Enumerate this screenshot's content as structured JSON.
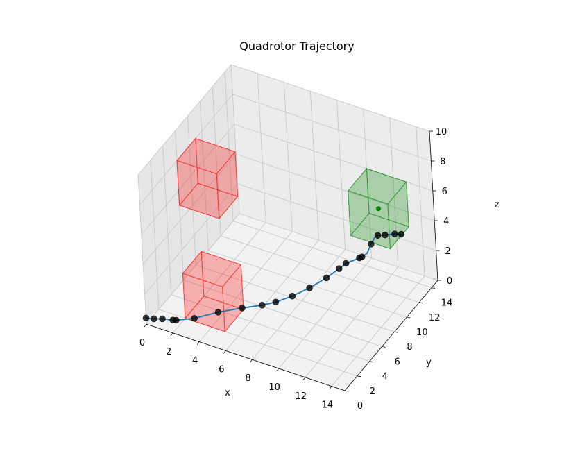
{
  "chart_data": {
    "type": "scatter",
    "title": "Quadrotor Trajectory",
    "xlabel": "x",
    "ylabel": "y",
    "zlabel": "z",
    "xlim": [
      0,
      15
    ],
    "ylim": [
      0,
      15
    ],
    "zlim": [
      0,
      10
    ],
    "xticks": [
      "0",
      "2",
      "4",
      "6",
      "8",
      "10",
      "12",
      "14"
    ],
    "yticks": [
      "0",
      "2",
      "4",
      "6",
      "8",
      "10",
      "12",
      "14"
    ],
    "zticks": [
      "0",
      "2",
      "4",
      "6",
      "8",
      "10"
    ],
    "grid": true,
    "trajectory_color": "#1f77b4",
    "waypoint_color": "#000000",
    "trajectory": [
      {
        "x": 0.0,
        "y": 0.0,
        "z": 0.4
      },
      {
        "x": 0.5,
        "y": 0.2,
        "z": 0.4
      },
      {
        "x": 1.0,
        "y": 0.5,
        "z": 0.4
      },
      {
        "x": 1.6,
        "y": 0.9,
        "z": 0.3
      },
      {
        "x": 1.8,
        "y": 1.0,
        "z": 0.3
      },
      {
        "x": 2.7,
        "y": 2.0,
        "z": 0.2
      },
      {
        "x": 3.8,
        "y": 3.5,
        "z": 0.2
      },
      {
        "x": 5.0,
        "y": 4.8,
        "z": 0.2
      },
      {
        "x": 6.2,
        "y": 5.5,
        "z": 0.4
      },
      {
        "x": 7.0,
        "y": 6.0,
        "z": 0.6
      },
      {
        "x": 8.0,
        "y": 6.6,
        "z": 1.0
      },
      {
        "x": 9.0,
        "y": 7.3,
        "z": 1.5
      },
      {
        "x": 9.9,
        "y": 8.2,
        "z": 2.0
      },
      {
        "x": 10.5,
        "y": 9.0,
        "z": 2.4
      },
      {
        "x": 10.8,
        "y": 9.5,
        "z": 2.6
      },
      {
        "x": 11.4,
        "y": 10.4,
        "z": 2.7
      },
      {
        "x": 11.5,
        "y": 10.6,
        "z": 2.7
      },
      {
        "x": 11.7,
        "y": 11.0,
        "z": 2.8
      },
      {
        "x": 11.8,
        "y": 11.5,
        "z": 3.2
      },
      {
        "x": 11.9,
        "y": 12.0,
        "z": 3.5
      },
      {
        "x": 12.0,
        "y": 12.2,
        "z": 3.5
      },
      {
        "x": 12.4,
        "y": 12.5,
        "z": 3.5
      },
      {
        "x": 13.0,
        "y": 12.8,
        "z": 3.6
      },
      {
        "x": 13.4,
        "y": 13.0,
        "z": 3.6
      }
    ],
    "waypoints": [
      {
        "x": 0.0,
        "y": 0.0,
        "z": 0.4
      },
      {
        "x": 0.5,
        "y": 0.2,
        "z": 0.4
      },
      {
        "x": 1.0,
        "y": 0.5,
        "z": 0.4
      },
      {
        "x": 1.6,
        "y": 0.9,
        "z": 0.3
      },
      {
        "x": 1.8,
        "y": 1.0,
        "z": 0.3
      },
      {
        "x": 2.7,
        "y": 2.0,
        "z": 0.2
      },
      {
        "x": 3.8,
        "y": 3.5,
        "z": 0.2
      },
      {
        "x": 5.0,
        "y": 4.8,
        "z": 0.2
      },
      {
        "x": 6.2,
        "y": 5.5,
        "z": 0.4
      },
      {
        "x": 7.0,
        "y": 6.0,
        "z": 0.6
      },
      {
        "x": 8.0,
        "y": 6.6,
        "z": 1.0
      },
      {
        "x": 9.0,
        "y": 7.3,
        "z": 1.5
      },
      {
        "x": 9.9,
        "y": 8.2,
        "z": 2.0
      },
      {
        "x": 10.5,
        "y": 9.0,
        "z": 2.4
      },
      {
        "x": 10.8,
        "y": 9.5,
        "z": 2.6
      },
      {
        "x": 11.4,
        "y": 10.4,
        "z": 2.7
      },
      {
        "x": 11.5,
        "y": 10.6,
        "z": 2.7
      },
      {
        "x": 11.8,
        "y": 11.5,
        "z": 3.2
      },
      {
        "x": 12.0,
        "y": 12.2,
        "z": 3.5
      },
      {
        "x": 12.4,
        "y": 12.5,
        "z": 3.5
      },
      {
        "x": 13.0,
        "y": 12.8,
        "z": 3.6
      },
      {
        "x": 13.4,
        "y": 13.0,
        "z": 3.6
      }
    ],
    "obstacles": [
      {
        "min": [
          2,
          2,
          0
        ],
        "max": [
          5,
          5,
          3
        ],
        "color": "#ff0000"
      },
      {
        "min": [
          0,
          6,
          5
        ],
        "max": [
          3,
          9,
          8
        ],
        "color": "#ff0000"
      }
    ],
    "goal_region": {
      "min": [
        10,
        12,
        3
      ],
      "max": [
        13,
        15,
        6
      ],
      "color": "#008000"
    },
    "goal_point": {
      "x": 11.5,
      "y": 13.5,
      "z": 4.5,
      "color": "#008000"
    }
  }
}
